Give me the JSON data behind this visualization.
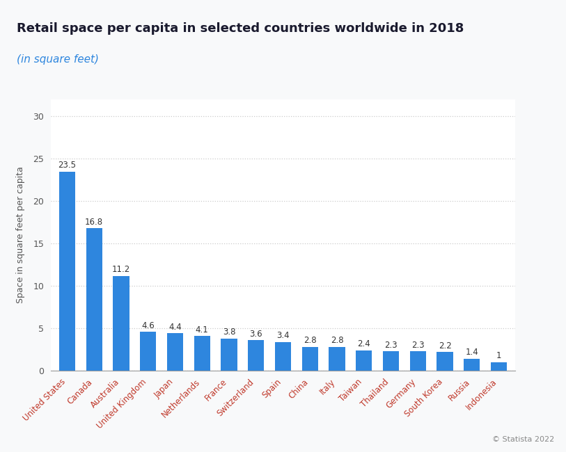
{
  "title": "Retail space per capita in selected countries worldwide in 2018",
  "subtitle": "(in square feet)",
  "ylabel": "Space in square feet per capita",
  "categories": [
    "United States",
    "Canada",
    "Australia",
    "United Kingdom",
    "Japan",
    "Netherlands",
    "France",
    "Switzerland",
    "Spain",
    "China",
    "Italy",
    "Taiwan",
    "Thailand",
    "Germany",
    "South Korea",
    "Russia",
    "Indonesia"
  ],
  "values": [
    23.5,
    16.8,
    11.2,
    4.6,
    4.4,
    4.1,
    3.8,
    3.6,
    3.4,
    2.8,
    2.8,
    2.4,
    2.3,
    2.3,
    2.2,
    1.4,
    1.0
  ],
  "bar_color": "#2e86de",
  "background_color": "#f8f9fa",
  "plot_bg_color": "#ffffff",
  "grid_color": "#cccccc",
  "title_color": "#1a1a2e",
  "subtitle_color": "#2e86de",
  "ylabel_color": "#555555",
  "tick_label_color": "#c0392b",
  "yticks": [
    0,
    5,
    10,
    15,
    20,
    25,
    30
  ],
  "ylim": [
    0,
    32
  ]
}
